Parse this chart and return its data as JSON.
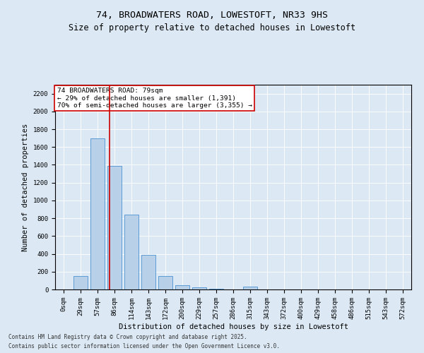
{
  "title": "74, BROADWATERS ROAD, LOWESTOFT, NR33 9HS",
  "subtitle": "Size of property relative to detached houses in Lowestoft",
  "xlabel": "Distribution of detached houses by size in Lowestoft",
  "ylabel": "Number of detached properties",
  "bar_labels": [
    "0sqm",
    "29sqm",
    "57sqm",
    "86sqm",
    "114sqm",
    "143sqm",
    "172sqm",
    "200sqm",
    "229sqm",
    "257sqm",
    "286sqm",
    "315sqm",
    "343sqm",
    "372sqm",
    "400sqm",
    "429sqm",
    "458sqm",
    "486sqm",
    "515sqm",
    "543sqm",
    "572sqm"
  ],
  "bar_values": [
    0,
    150,
    1700,
    1390,
    840,
    390,
    150,
    50,
    25,
    5,
    0,
    28,
    0,
    0,
    0,
    0,
    0,
    0,
    0,
    0,
    0
  ],
  "bar_color": "#b8d0e8",
  "bar_edge_color": "#5b9bd5",
  "ylim": [
    0,
    2300
  ],
  "yticks": [
    0,
    200,
    400,
    600,
    800,
    1000,
    1200,
    1400,
    1600,
    1800,
    2000,
    2200
  ],
  "property_line_x": 2.72,
  "annotation_text": "74 BROADWATERS ROAD: 79sqm\n← 29% of detached houses are smaller (1,391)\n70% of semi-detached houses are larger (3,355) →",
  "annotation_box_color": "#ffffff",
  "annotation_box_edgecolor": "#cc0000",
  "vline_color": "#cc0000",
  "footnote1": "Contains HM Land Registry data © Crown copyright and database right 2025.",
  "footnote2": "Contains public sector information licensed under the Open Government Licence v3.0.",
  "background_color": "#dce9f5",
  "plot_bg_color": "#dce9f5",
  "title_fontsize": 9.5,
  "subtitle_fontsize": 8.5,
  "tick_fontsize": 6.5,
  "ylabel_fontsize": 7.5,
  "xlabel_fontsize": 7.5,
  "annot_fontsize": 6.8,
  "footnote_fontsize": 5.5
}
